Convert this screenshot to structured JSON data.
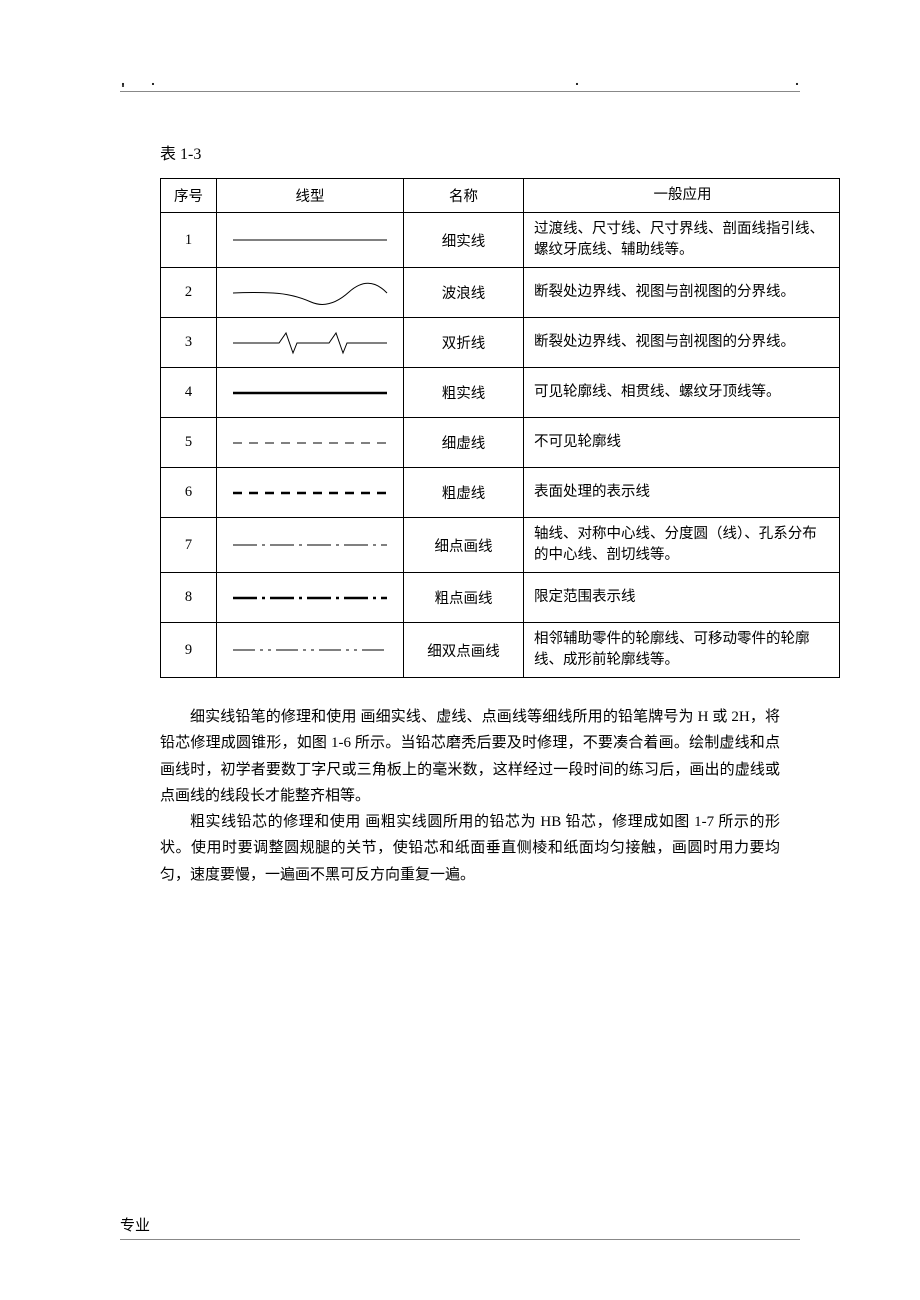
{
  "tableTitle": "表 1-3",
  "headers": {
    "seq": "序号",
    "lineType": "线型",
    "name": "名称",
    "app": "一般应用"
  },
  "rows": [
    {
      "seq": "1",
      "lineStyle": "thin-solid",
      "name": "细实线",
      "app": "过渡线、尺寸线、尺寸界线、剖面线指引线、螺纹牙底线、辅助线等。"
    },
    {
      "seq": "2",
      "lineStyle": "wave",
      "name": "波浪线",
      "app": "断裂处边界线、视图与剖视图的分界线。"
    },
    {
      "seq": "3",
      "lineStyle": "zigzag",
      "name": "双折线",
      "app": "断裂处边界线、视图与剖视图的分界线。"
    },
    {
      "seq": "4",
      "lineStyle": "thick-solid",
      "name": "粗实线",
      "app": "可见轮廓线、相贯线、螺纹牙顶线等。"
    },
    {
      "seq": "5",
      "lineStyle": "thin-dash",
      "name": "细虚线",
      "app": "不可见轮廓线"
    },
    {
      "seq": "6",
      "lineStyle": "thick-dash",
      "name": "粗虚线",
      "app": "表面处理的表示线"
    },
    {
      "seq": "7",
      "lineStyle": "thin-dashdot",
      "name": "细点画线",
      "app": "轴线、对称中心线、分度圆（线）、孔系分布的中心线、剖切线等。"
    },
    {
      "seq": "8",
      "lineStyle": "thick-dashdot",
      "name": "粗点画线",
      "app": "限定范围表示线"
    },
    {
      "seq": "9",
      "lineStyle": "thin-dashdotdot",
      "name": "细双点画线",
      "app": "相邻辅助零件的轮廓线、可移动零件的轮廓线、成形前轮廓线等。"
    }
  ],
  "paragraphs": [
    "细实线铅笔的修理和使用 画细实线、虚线、点画线等细线所用的铅笔牌号为 H 或 2H，将铅芯修理成圆锥形，如图 1-6 所示。当铅芯磨秃后要及时修理，不要凑合着画。绘制虚线和点画线时，初学者要数丁字尺或三角板上的毫米数，这样经过一段时间的练习后，画出的虚线或点画线的线段长才能整齐相等。",
    "粗实线铅芯的修理和使用 画粗实线圆所用的铅芯为 HB 铅芯，修理成如图 1-7 所示的形状。使用时要调整圆规腿的关节，使铅芯和纸面垂直侧棱和纸面均匀接触，画圆时用力要均匀，速度要慢，一遍画不黑可反方向重复一遍。"
  ],
  "footer": "专业",
  "colors": {
    "text": "#000000",
    "border": "#000000",
    "rule": "#888888",
    "background": "#ffffff"
  },
  "lineStyles": {
    "thin-solid": {
      "strokeWidth": 1.0
    },
    "thick-solid": {
      "strokeWidth": 2.6
    },
    "thin-dash": {
      "strokeWidth": 1.0,
      "dash": "9 7"
    },
    "thick-dash": {
      "strokeWidth": 2.6,
      "dash": "9 7"
    },
    "thin-dashdot": {
      "strokeWidth": 1.0,
      "dash": "24 5 3 5"
    },
    "thick-dashdot": {
      "strokeWidth": 2.6,
      "dash": "24 5 3 5"
    },
    "thin-dashdotdot": {
      "strokeWidth": 1.0,
      "dash": "22 5 3 5 3 5"
    }
  }
}
